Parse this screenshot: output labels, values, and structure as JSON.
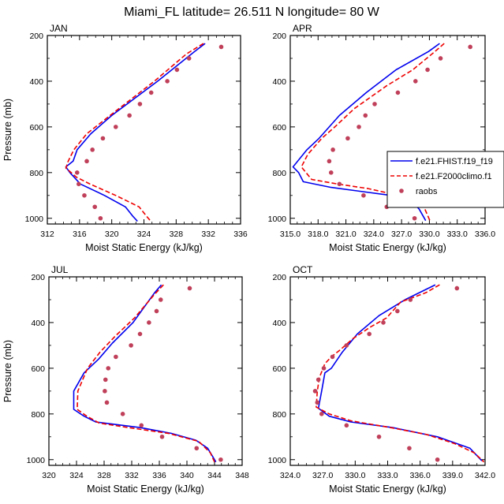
{
  "title": "Miami_FL  latitude= 26.511 N longitude= 80 W",
  "colors": {
    "model1": "#0000ee",
    "model2": "#ee0000",
    "raobs": "#c0405a",
    "axis": "#000000"
  },
  "legend": {
    "placement": "right of APR panel",
    "entries": [
      {
        "label": "f.e21.FHIST.f19_f19",
        "style": "solid",
        "color": "#0000ee"
      },
      {
        "label": "f.e21.F2000climo.f1",
        "style": "dashed",
        "color": "#ee0000"
      },
      {
        "label": "raobs",
        "style": "dot",
        "color": "#c0405a"
      }
    ]
  },
  "chart_data": [
    {
      "type": "line",
      "title": "JAN",
      "xlabel": "Moist Static Energy (kJ/kg)",
      "ylabel": "Pressure (mb)",
      "xlim": [
        312,
        336
      ],
      "ylim": [
        200,
        1025
      ],
      "y_inverted": true,
      "xticks": [
        "312",
        "316",
        "320",
        "324",
        "328",
        "332",
        "336"
      ],
      "yticks": [
        "200",
        "400",
        "600",
        "800",
        "1000"
      ],
      "series": [
        {
          "name": "f.e21.FHIST.f19_f19",
          "style": "line",
          "points": [
            [
              331.6,
              235
            ],
            [
              330.3,
              270
            ],
            [
              325.7,
              400
            ],
            [
              320,
              550
            ],
            [
              317.4,
              630
            ],
            [
              315.7,
              700
            ],
            [
              315.2,
              750
            ],
            [
              314.3,
              775
            ],
            [
              314.8,
              800
            ],
            [
              316.1,
              850
            ],
            [
              319.1,
              900
            ],
            [
              321.7,
              950
            ],
            [
              322.6,
              990
            ],
            [
              323.2,
              1013
            ]
          ]
        },
        {
          "name": "f.e21.F2000climo.f1",
          "style": "dashed",
          "points": [
            [
              331.4,
              235
            ],
            [
              329.3,
              280
            ],
            [
              325.3,
              400
            ],
            [
              319.8,
              550
            ],
            [
              316.9,
              630
            ],
            [
              315.3,
              700
            ],
            [
              314.6,
              750
            ],
            [
              314.3,
              780
            ],
            [
              315.6,
              820
            ],
            [
              317.3,
              850
            ],
            [
              320.5,
              900
            ],
            [
              323.4,
              950
            ],
            [
              324.3,
              990
            ],
            [
              324.9,
              1015
            ]
          ]
        },
        {
          "name": "raobs",
          "style": "dots",
          "points": [
            [
              333.6,
              250
            ],
            [
              329.6,
              300
            ],
            [
              328.1,
              350
            ],
            [
              326.9,
              400
            ],
            [
              324.9,
              450
            ],
            [
              323.5,
              500
            ],
            [
              322.2,
              550
            ],
            [
              320.5,
              600
            ],
            [
              318.9,
              650
            ],
            [
              317.6,
              700
            ],
            [
              316.9,
              750
            ],
            [
              315.7,
              800
            ],
            [
              315.9,
              850
            ],
            [
              316.6,
              900
            ],
            [
              317.9,
              950
            ],
            [
              318.6,
              1000
            ]
          ]
        }
      ]
    },
    {
      "type": "line",
      "title": "APR",
      "xlabel": "Moist Static Energy (kJ/kg)",
      "ylabel": "",
      "xlim": [
        315,
        336
      ],
      "ylim": [
        200,
        1025
      ],
      "y_inverted": true,
      "xticks": [
        "315.0",
        "318.0",
        "321.0",
        "324.0",
        "327.0",
        "330.0",
        "333.0",
        "336.0"
      ],
      "yticks": [
        "200",
        "400",
        "600",
        "800",
        "1000"
      ],
      "series": [
        {
          "name": "f.e21.FHIST.f19_f19",
          "style": "line",
          "points": [
            [
              331.1,
              235
            ],
            [
              329.9,
              270
            ],
            [
              326.4,
              350
            ],
            [
              323.2,
              450
            ],
            [
              320.3,
              550
            ],
            [
              318.1,
              650
            ],
            [
              316.8,
              700
            ],
            [
              315.3,
              775
            ],
            [
              315.9,
              800
            ],
            [
              316.4,
              840
            ],
            [
              319.4,
              865
            ],
            [
              322.2,
              880
            ],
            [
              325.9,
              900
            ],
            [
              328.1,
              925
            ],
            [
              328.9,
              960
            ],
            [
              329.6,
              1010
            ]
          ]
        },
        {
          "name": "f.e21.F2000climo.f1",
          "style": "dashed",
          "points": [
            [
              331.6,
              235
            ],
            [
              330.6,
              270
            ],
            [
              328.2,
              350
            ],
            [
              325.4,
              420
            ],
            [
              321.9,
              520
            ],
            [
              319.8,
              600
            ],
            [
              318.4,
              650
            ],
            [
              316.9,
              720
            ],
            [
              316.2,
              775
            ],
            [
              317.3,
              830
            ],
            [
              320.1,
              850
            ],
            [
              323.4,
              870
            ],
            [
              326.7,
              900
            ],
            [
              329.3,
              940
            ],
            [
              330.1,
              1015
            ]
          ]
        },
        {
          "name": "raobs",
          "style": "dots",
          "points": [
            [
              334.4,
              250
            ],
            [
              331.2,
              300
            ],
            [
              329.8,
              350
            ],
            [
              328.5,
              400
            ],
            [
              326.6,
              450
            ],
            [
              324.1,
              500
            ],
            [
              323.1,
              550
            ],
            [
              322.4,
              600
            ],
            [
              321.2,
              650
            ],
            [
              319.6,
              700
            ],
            [
              319.2,
              750
            ],
            [
              319.4,
              800
            ],
            [
              320.3,
              850
            ],
            [
              322.9,
              900
            ],
            [
              325.4,
              950
            ],
            [
              328.4,
              1000
            ]
          ]
        }
      ]
    },
    {
      "type": "line",
      "title": "JUL",
      "xlabel": "Moist Static Energy (kJ/kg)",
      "ylabel": "Pressure (mb)",
      "xlim": [
        320,
        348
      ],
      "ylim": [
        200,
        1025
      ],
      "y_inverted": true,
      "xticks": [
        "320",
        "324",
        "328",
        "332",
        "336",
        "340",
        "344",
        "348"
      ],
      "yticks": [
        "200",
        "400",
        "600",
        "800",
        "1000"
      ],
      "series": [
        {
          "name": "f.e21.FHIST.f19_f19",
          "style": "line",
          "points": [
            [
              336.3,
              235
            ],
            [
              335.3,
              270
            ],
            [
              332.2,
              400
            ],
            [
              329.2,
              490
            ],
            [
              327.2,
              560
            ],
            [
              325.1,
              620
            ],
            [
              323.6,
              700
            ],
            [
              323.6,
              780
            ],
            [
              325.1,
              810
            ],
            [
              326.8,
              835
            ],
            [
              333.3,
              860
            ],
            [
              337.7,
              885
            ],
            [
              341.3,
              915
            ],
            [
              343,
              950
            ],
            [
              343.8,
              990
            ],
            [
              344.2,
              1010
            ]
          ]
        },
        {
          "name": "f.e21.F2000climo.f1",
          "style": "dashed",
          "points": [
            [
              336.6,
              235
            ],
            [
              335.2,
              280
            ],
            [
              332.4,
              380
            ],
            [
              329.6,
              460
            ],
            [
              327.4,
              530
            ],
            [
              325.6,
              600
            ],
            [
              324.2,
              700
            ],
            [
              324.1,
              780
            ],
            [
              325.5,
              810
            ],
            [
              327.3,
              840
            ],
            [
              331.6,
              860
            ],
            [
              337.3,
              885
            ],
            [
              341.7,
              920
            ],
            [
              343.4,
              970
            ],
            [
              344,
              1010
            ]
          ]
        },
        {
          "name": "raobs",
          "style": "dots",
          "points": [
            [
              340.4,
              250
            ],
            [
              336.2,
              300
            ],
            [
              335.6,
              350
            ],
            [
              334.5,
              400
            ],
            [
              333.2,
              450
            ],
            [
              331.9,
              500
            ],
            [
              329.7,
              550
            ],
            [
              328.6,
              600
            ],
            [
              328.2,
              650
            ],
            [
              328.1,
              700
            ],
            [
              328.4,
              750
            ],
            [
              330.7,
              800
            ],
            [
              333.4,
              850
            ],
            [
              336.4,
              900
            ],
            [
              341.4,
              950
            ],
            [
              344.9,
              1000
            ]
          ]
        }
      ]
    },
    {
      "type": "line",
      "title": "OCT",
      "xlabel": "Moist Static Energy (kJ/kg)",
      "ylabel": "",
      "xlim": [
        324,
        342
      ],
      "ylim": [
        200,
        1025
      ],
      "y_inverted": true,
      "xticks": [
        "324.0",
        "327.0",
        "330.0",
        "333.0",
        "336.0",
        "339.0",
        "342.0"
      ],
      "yticks": [
        "200",
        "400",
        "600",
        "800",
        "1000"
      ],
      "series": [
        {
          "name": "f.e21.FHIST.f19_f19",
          "style": "line",
          "points": [
            [
              337.4,
              235
            ],
            [
              334.6,
              300
            ],
            [
              332.2,
              370
            ],
            [
              330.2,
              450
            ],
            [
              328.8,
              530
            ],
            [
              327.8,
              600
            ],
            [
              327.2,
              620
            ],
            [
              326.9,
              700
            ],
            [
              326.6,
              775
            ],
            [
              327.6,
              810
            ],
            [
              329.6,
              835
            ],
            [
              333.5,
              860
            ],
            [
              337.6,
              900
            ],
            [
              340.6,
              950
            ],
            [
              341.7,
              1005
            ]
          ]
        },
        {
          "name": "f.e21.F2000climo.f1",
          "style": "dashed",
          "points": [
            [
              337.8,
              235
            ],
            [
              336.5,
              270
            ],
            [
              334.2,
              310
            ],
            [
              332.9,
              380
            ],
            [
              331.4,
              420
            ],
            [
              329.8,
              470
            ],
            [
              328.6,
              520
            ],
            [
              327.8,
              550
            ],
            [
              327.2,
              580
            ],
            [
              326.7,
              640
            ],
            [
              326.5,
              700
            ],
            [
              326.4,
              770
            ],
            [
              327.6,
              800
            ],
            [
              329.6,
              830
            ],
            [
              333.3,
              860
            ],
            [
              336.6,
              890
            ],
            [
              339.2,
              930
            ],
            [
              341,
              970
            ],
            [
              341.9,
              1010
            ]
          ]
        },
        {
          "name": "raobs",
          "style": "dots",
          "points": [
            [
              339.4,
              250
            ],
            [
              335.1,
              300
            ],
            [
              333.9,
              350
            ],
            [
              332.6,
              400
            ],
            [
              331.3,
              450
            ],
            [
              329.2,
              500
            ],
            [
              327.9,
              550
            ],
            [
              327.1,
              600
            ],
            [
              326.6,
              650
            ],
            [
              326.3,
              700
            ],
            [
              326.5,
              750
            ],
            [
              326.9,
              800
            ],
            [
              329.2,
              850
            ],
            [
              332.2,
              900
            ],
            [
              335,
              950
            ],
            [
              337.6,
              1000
            ]
          ]
        }
      ]
    }
  ]
}
